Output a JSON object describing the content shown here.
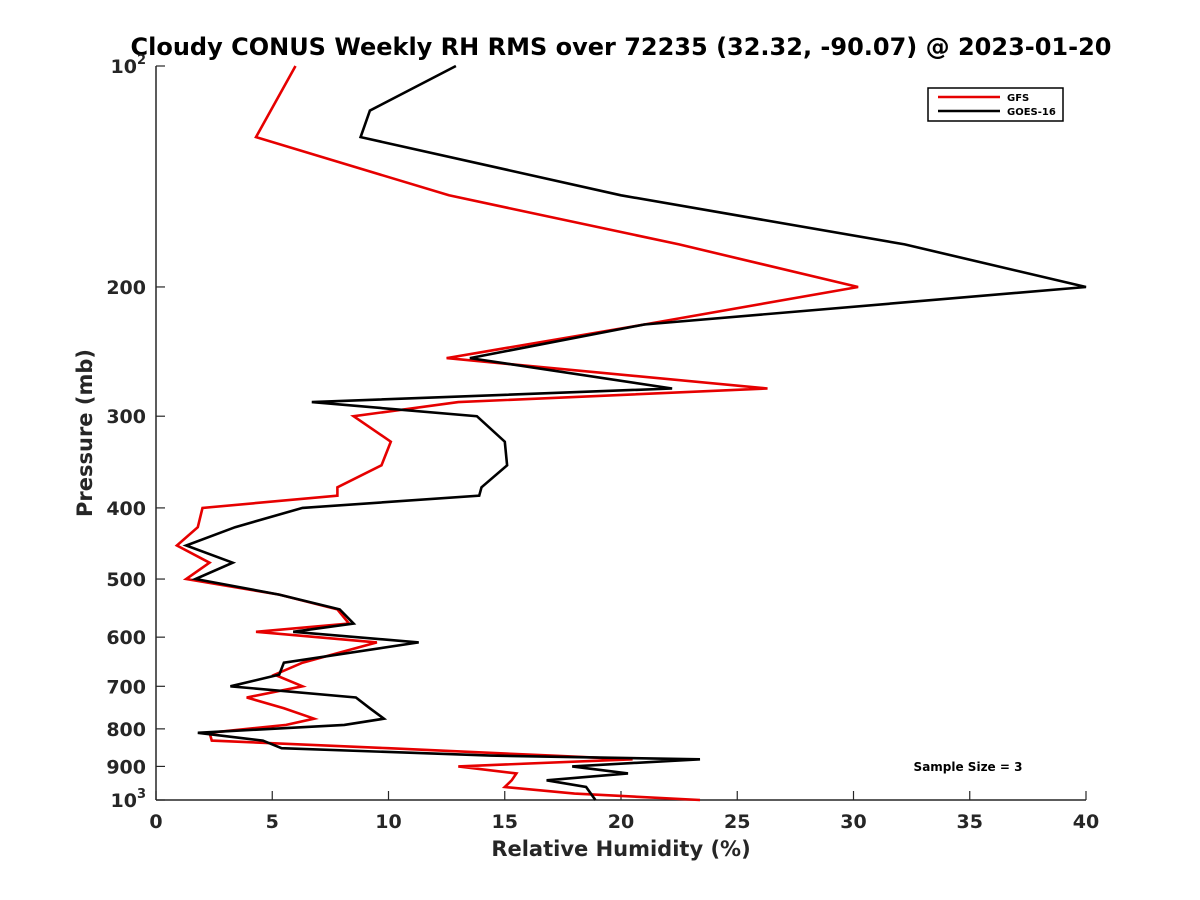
{
  "chart_data": {
    "type": "line",
    "title": "Cloudy CONUS Weekly RH RMS over 72235 (32.32, -90.07) @ 2023-01-20",
    "xlabel": "Relative Humidity (%)",
    "ylabel": "Pressure (mb)",
    "xlim": [
      0,
      40
    ],
    "ylim": [
      100,
      1000
    ],
    "yscale": "log",
    "yreversed": true,
    "grid": false,
    "legend_position": "top-right",
    "x_ticks": [
      0,
      5,
      10,
      15,
      20,
      25,
      30,
      35,
      40
    ],
    "x_tick_labels": [
      "0",
      "5",
      "10",
      "15",
      "20",
      "25",
      "30",
      "35",
      "40"
    ],
    "y_ticks": [
      200,
      300,
      400,
      500,
      600,
      700,
      800,
      900
    ],
    "y_tick_labels": [
      "200",
      "300",
      "400",
      "500",
      "600",
      "700",
      "800",
      "900"
    ],
    "y_decade_ticks": [
      {
        "value": 100,
        "base": "10",
        "exp": "2"
      },
      {
        "value": 1000,
        "base": "10",
        "exp": "3"
      }
    ],
    "annotation": "Sample Size = 3",
    "series": [
      {
        "name": "GFS",
        "color": "#e60000",
        "points": [
          [
            6.0,
            100
          ],
          [
            4.3,
            125
          ],
          [
            12.6,
            150
          ],
          [
            22.5,
            175
          ],
          [
            30.2,
            200
          ],
          [
            21.0,
            225
          ],
          [
            12.5,
            250
          ],
          [
            26.3,
            275
          ],
          [
            13.0,
            287
          ],
          [
            8.5,
            300
          ],
          [
            10.1,
            325
          ],
          [
            9.7,
            350
          ],
          [
            7.8,
            375
          ],
          [
            7.8,
            385
          ],
          [
            2.0,
            400
          ],
          [
            1.8,
            425
          ],
          [
            0.9,
            450
          ],
          [
            2.3,
            475
          ],
          [
            1.3,
            500
          ],
          [
            5.3,
            525
          ],
          [
            7.8,
            550
          ],
          [
            8.3,
            575
          ],
          [
            4.3,
            590
          ],
          [
            9.5,
            610
          ],
          [
            6.3,
            650
          ],
          [
            5.1,
            675
          ],
          [
            6.3,
            700
          ],
          [
            3.9,
            725
          ],
          [
            5.5,
            750
          ],
          [
            6.8,
            775
          ],
          [
            5.6,
            790
          ],
          [
            2.3,
            810
          ],
          [
            2.4,
            830
          ],
          [
            10.0,
            850
          ],
          [
            17.0,
            870
          ],
          [
            20.5,
            880
          ],
          [
            13.0,
            900
          ],
          [
            15.5,
            920
          ],
          [
            15.3,
            940
          ],
          [
            15.0,
            960
          ],
          [
            18.0,
            980
          ],
          [
            23.4,
            1000
          ]
        ]
      },
      {
        "name": "GOES-16",
        "color": "#000000",
        "points": [
          [
            12.9,
            100
          ],
          [
            9.2,
            115
          ],
          [
            8.8,
            125
          ],
          [
            20.0,
            150
          ],
          [
            32.2,
            175
          ],
          [
            40.0,
            200
          ],
          [
            21.0,
            225
          ],
          [
            13.5,
            250
          ],
          [
            22.2,
            275
          ],
          [
            6.7,
            287
          ],
          [
            13.8,
            300
          ],
          [
            15.0,
            325
          ],
          [
            15.1,
            350
          ],
          [
            14.0,
            375
          ],
          [
            13.9,
            385
          ],
          [
            6.3,
            400
          ],
          [
            3.4,
            425
          ],
          [
            1.3,
            450
          ],
          [
            3.3,
            475
          ],
          [
            1.7,
            500
          ],
          [
            5.3,
            525
          ],
          [
            7.9,
            550
          ],
          [
            8.5,
            575
          ],
          [
            5.9,
            590
          ],
          [
            11.3,
            610
          ],
          [
            5.5,
            650
          ],
          [
            5.3,
            675
          ],
          [
            3.2,
            700
          ],
          [
            8.6,
            725
          ],
          [
            9.2,
            750
          ],
          [
            9.8,
            775
          ],
          [
            8.1,
            790
          ],
          [
            1.8,
            810
          ],
          [
            4.6,
            830
          ],
          [
            5.4,
            850
          ],
          [
            14.4,
            870
          ],
          [
            23.4,
            880
          ],
          [
            17.9,
            900
          ],
          [
            20.3,
            920
          ],
          [
            16.8,
            940
          ],
          [
            18.5,
            960
          ],
          [
            18.9,
            1000
          ]
        ]
      }
    ]
  }
}
